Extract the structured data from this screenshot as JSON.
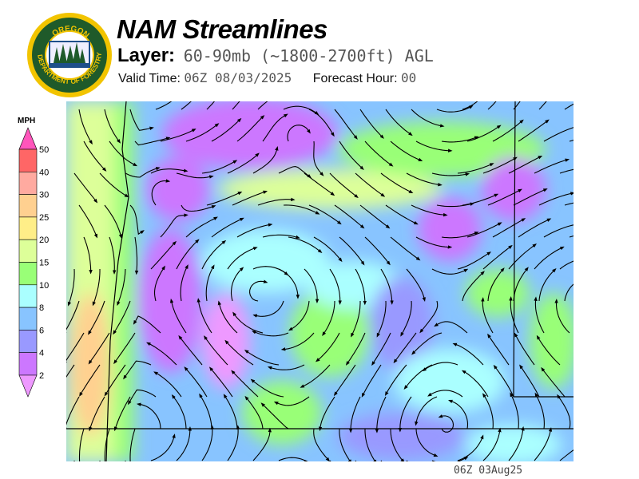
{
  "header": {
    "title": "NAM Streamlines",
    "layer_label": "Layer:",
    "layer_value": "60-90mb (~1800-2700ft) AGL",
    "valid_time_label": "Valid Time:",
    "valid_time_value": "06Z 08/03/2025",
    "forecast_hour_label": "Forecast Hour:",
    "forecast_hour_value": "00"
  },
  "logo": {
    "top_text": "OREGON",
    "ring_text": "DEPARTMENT OF FORESTRY",
    "colors": {
      "ring": "#f2c400",
      "field": "#1f5a2a",
      "water": "#1e4f8a"
    }
  },
  "legend": {
    "unit": "MPH",
    "ticks": [
      "50",
      "40",
      "30",
      "25",
      "20",
      "15",
      "10",
      "8",
      "6",
      "4",
      "2"
    ],
    "colors_top_to_bottom": [
      "#ff55bb",
      "#ff6666",
      "#ffaaa0",
      "#ffd090",
      "#ffee88",
      "#ddff99",
      "#99ff77",
      "#aaffff",
      "#88c4ff",
      "#9999ff",
      "#cc77ff",
      "#ee99ff"
    ]
  },
  "footer": {
    "timestamp": "06Z 03Aug25"
  }
}
